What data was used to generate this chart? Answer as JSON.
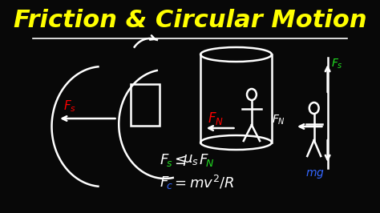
{
  "bg_color": "#080808",
  "title": "Friction & Circular Motion",
  "title_color": "#FFFF00",
  "title_fontsize": 22,
  "fig_width": 4.74,
  "fig_height": 2.66,
  "dpi": 100,
  "eq1": "F_s  ≤  μ_s F_N",
  "eq2": "F_c  =  mv²/R"
}
